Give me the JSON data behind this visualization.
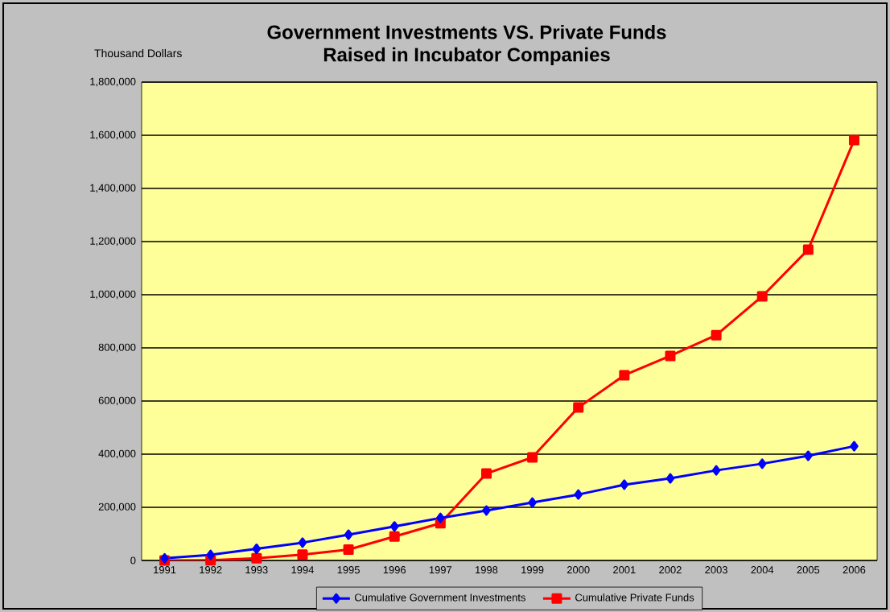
{
  "chart_data": {
    "type": "line",
    "title": "Government Investments VS. Private Funds\nRaised in Incubator Companies",
    "ylabel": "Thousand Dollars",
    "categories": [
      "1991",
      "1992",
      "1993",
      "1994",
      "1995",
      "1996",
      "1997",
      "1998",
      "1999",
      "2000",
      "2001",
      "2002",
      "2003",
      "2004",
      "2005",
      "2006"
    ],
    "series": [
      {
        "name": "Cumulative Government Investments",
        "color": "#0000ff",
        "marker": "diamond",
        "values": [
          8000,
          21000,
          44000,
          67000,
          97000,
          128000,
          160000,
          188000,
          218000,
          248000,
          285000,
          309000,
          339000,
          364000,
          394000,
          430000
        ]
      },
      {
        "name": "Cumulative Private Funds",
        "color": "#ff0000",
        "marker": "square",
        "values": [
          0,
          1000,
          8000,
          22000,
          41000,
          90000,
          140000,
          327000,
          388000,
          576000,
          697000,
          770000,
          848000,
          994000,
          1170000,
          1582000
        ]
      }
    ],
    "ylim": [
      0,
      1800000
    ],
    "yticks": [
      0,
      {
        "value": 200000,
        "label": "200,000"
      },
      {
        "value": 400000,
        "label": "400,000"
      },
      {
        "value": 600000,
        "label": "600,000"
      },
      {
        "value": 800000,
        "label": "800,000"
      },
      {
        "value": 1000000,
        "label": "1,000,000"
      },
      {
        "value": 1200000,
        "label": "1,200,000"
      },
      {
        "value": 1400000,
        "label": "1,400,000"
      },
      {
        "value": 1600000,
        "label": "1,600,000"
      },
      {
        "value": 1800000,
        "label": "1,800,000"
      }
    ],
    "grid": "y",
    "legend": "bottom",
    "line_style": "solid"
  }
}
